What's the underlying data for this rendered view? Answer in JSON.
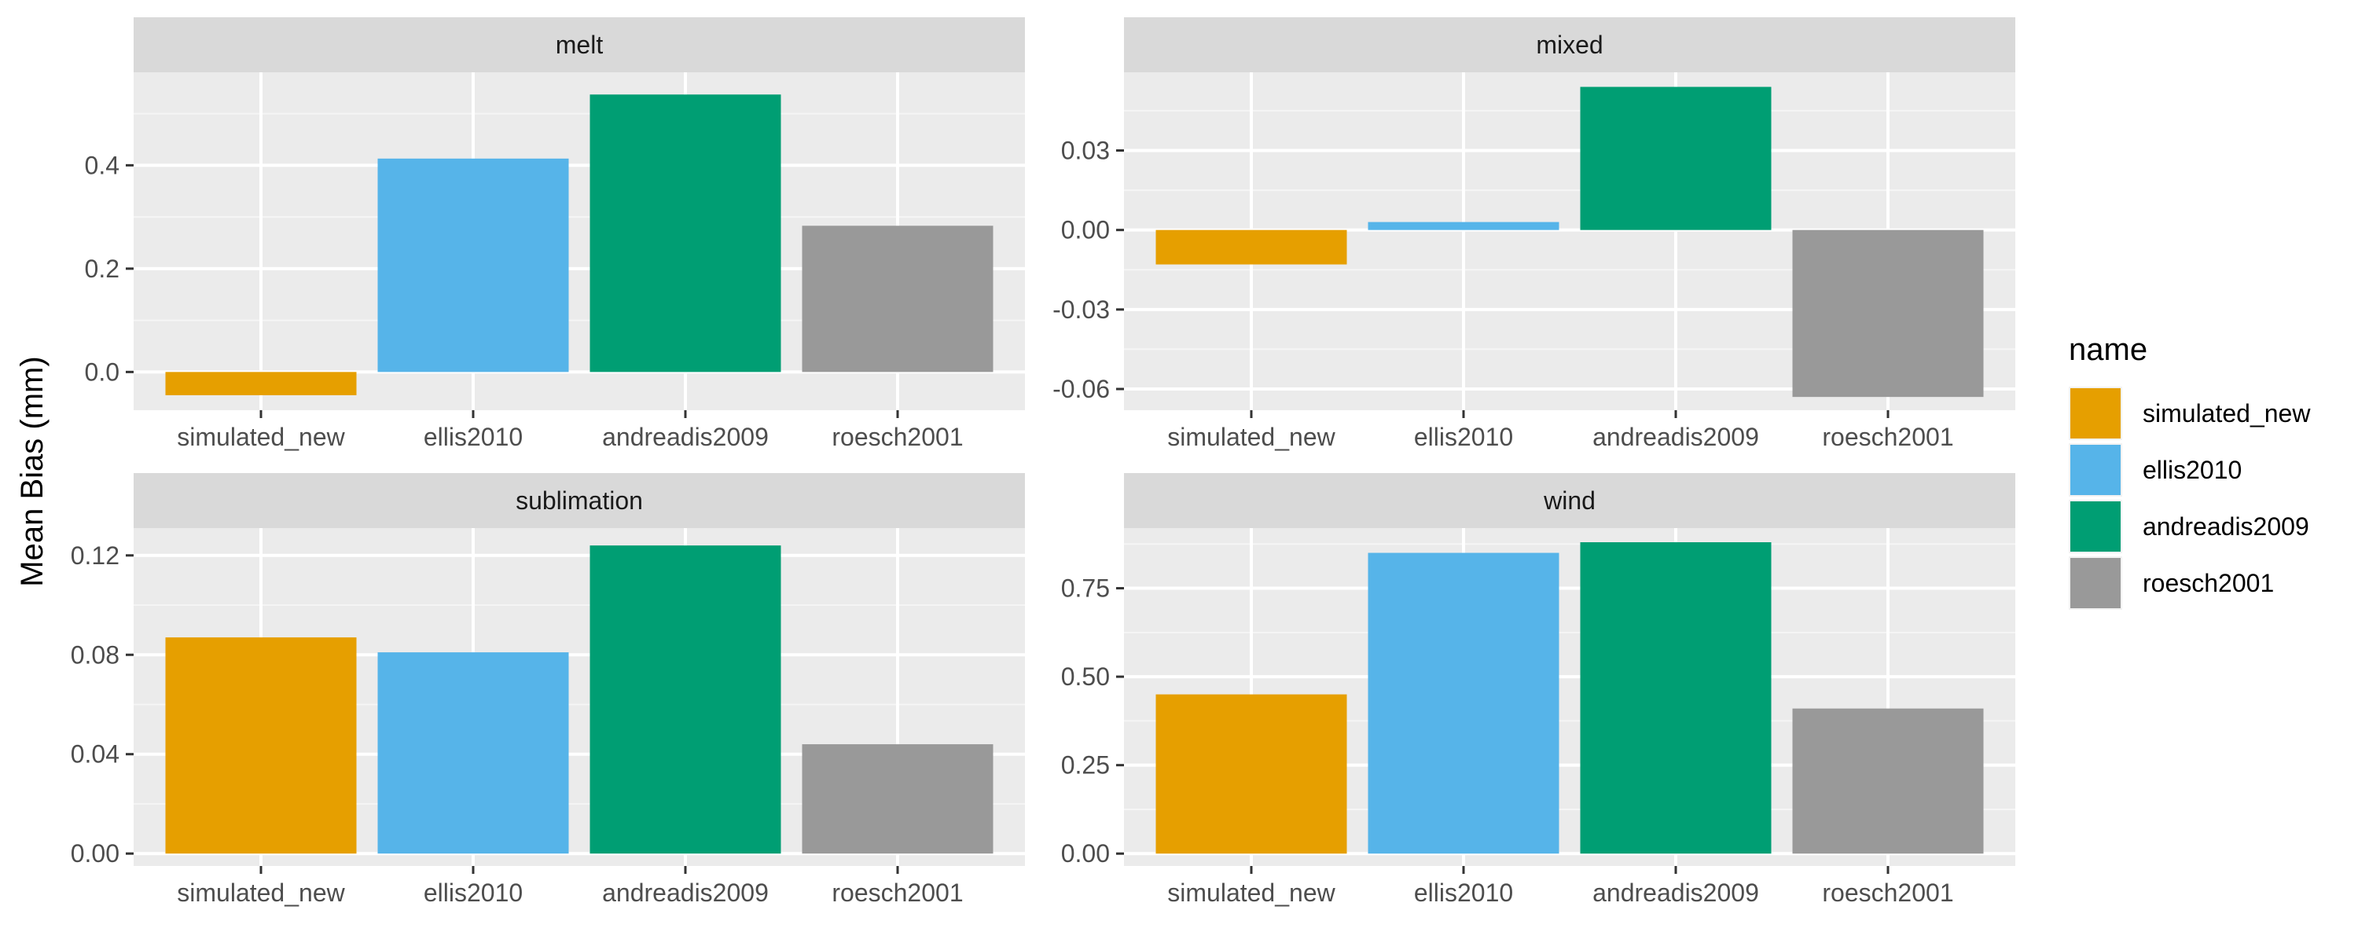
{
  "chart_data": {
    "type": "bar",
    "ylabel": "Mean Bias (mm)",
    "categories": [
      "simulated_new",
      "ellis2010",
      "andreadis2009",
      "roesch2001"
    ],
    "colors": [
      "#E69F00",
      "#56B4E9",
      "#009E73",
      "#999999"
    ],
    "legend": {
      "title": "name",
      "position": "right",
      "entries": [
        "simulated_new",
        "ellis2010",
        "andreadis2009",
        "roesch2001"
      ]
    },
    "grid": true,
    "panels": [
      {
        "name": "melt",
        "values": [
          -0.045,
          0.413,
          0.537,
          0.283
        ],
        "ylim": [
          -0.074,
          0.58
        ],
        "yticks": [
          0.0,
          0.2,
          0.4
        ],
        "ytick_labels": [
          "0.0",
          "0.2",
          "0.4"
        ]
      },
      {
        "name": "mixed",
        "values": [
          -0.013,
          0.003,
          0.054,
          -0.063
        ],
        "ylim": [
          -0.068,
          0.0595
        ],
        "yticks": [
          -0.06,
          -0.03,
          0.0,
          0.03
        ],
        "ytick_labels": [
          "-0.06",
          "-0.03",
          "0.00",
          "0.03"
        ]
      },
      {
        "name": "sublimation",
        "values": [
          0.087,
          0.081,
          0.124,
          0.044
        ],
        "ylim": [
          -0.005,
          0.131
        ],
        "yticks": [
          0.0,
          0.04,
          0.08,
          0.12
        ],
        "ytick_labels": [
          "0.00",
          "0.04",
          "0.08",
          "0.12"
        ]
      },
      {
        "name": "wind",
        "values": [
          0.45,
          0.85,
          0.88,
          0.41
        ],
        "ylim": [
          -0.035,
          0.92
        ],
        "yticks": [
          0.0,
          0.25,
          0.5,
          0.75
        ],
        "ytick_labels": [
          "0.00",
          "0.25",
          "0.50",
          "0.75"
        ]
      }
    ]
  }
}
